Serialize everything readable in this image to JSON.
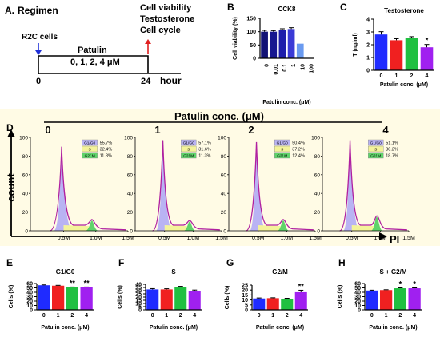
{
  "panel_A": {
    "letter": "A.",
    "title": "Regimen",
    "cells": "R2C cells",
    "treatment": "Patulin",
    "doses": "0, 1, 2, 4 μM",
    "tick_start": "0",
    "tick_end": "24",
    "time_unit": "hour",
    "endpoints": [
      "Cell viability",
      "Testosterone",
      "Cell cycle"
    ]
  },
  "panel_D": {
    "letter": "D",
    "header": "Patulin conc. (μM)",
    "y_axis_title": "count",
    "x_axis_title": "PI",
    "y_ticks": [
      "0",
      "20",
      "40",
      "60",
      "80",
      "100"
    ],
    "x_ticks": [
      "0.5M",
      "1.0M",
      "1.5M"
    ],
    "legend_labels": [
      "G1/G0",
      "S",
      "G2/ M"
    ],
    "colors": {
      "g1": "#b9b3f3",
      "s": "#f4f39a",
      "g2m": "#5fd36a",
      "outline": "#b020a0"
    }
  },
  "chart_data": [
    {
      "panel": "B",
      "type": "bar",
      "title": "CCK8",
      "ylabel": "Cell viability (%)",
      "xlabel": "Patulin conc. (μM)",
      "categories": [
        "0",
        "0.01",
        "0.1",
        "1",
        "10",
        "100"
      ],
      "values": [
        100,
        100,
        105,
        110,
        55,
        0
      ],
      "errors": [
        5,
        4,
        6,
        5,
        0,
        0
      ],
      "ylim": [
        0,
        150
      ],
      "yticks": [
        0,
        50,
        100,
        150
      ],
      "colors": [
        "#131375",
        "#161690",
        "#1d1dab",
        "#3a3ad6",
        "#6a9af0",
        "#6a9af0"
      ]
    },
    {
      "panel": "C",
      "type": "bar",
      "title": "Testosterone",
      "ylabel": "T (ng/ml)",
      "xlabel": "Patulin conc. (μM)",
      "categories": [
        "0",
        "1",
        "2",
        "4"
      ],
      "values": [
        2.8,
        2.35,
        2.55,
        1.8
      ],
      "errors": [
        0.22,
        0.12,
        0.08,
        0.22
      ],
      "stars": [
        "",
        "",
        "",
        "*"
      ],
      "ylim": [
        0,
        4
      ],
      "yticks": [
        0,
        1,
        2,
        3,
        4
      ],
      "colors": [
        "#1f2bff",
        "#f02020",
        "#20c040",
        "#a020f0"
      ]
    },
    {
      "panel": "D0",
      "type": "area",
      "title": "0",
      "phases": [
        {
          "name": "G1/G0",
          "percent": "55.7%"
        },
        {
          "name": "S",
          "percent": "32.4%"
        },
        {
          "name": "G2/ M",
          "percent": "11.8%"
        }
      ],
      "peak": 90,
      "g2_height": 11
    },
    {
      "panel": "D1",
      "type": "area",
      "title": "1",
      "phases": [
        {
          "name": "G1/G0",
          "percent": "57.1%"
        },
        {
          "name": "S",
          "percent": "31.6%"
        },
        {
          "name": "G2/ M",
          "percent": "11.3%"
        }
      ],
      "peak": 97,
      "g2_height": 10
    },
    {
      "panel": "D2",
      "type": "area",
      "title": "2",
      "phases": [
        {
          "name": "G1/G0",
          "percent": "50.4%"
        },
        {
          "name": "S",
          "percent": "37.2%"
        },
        {
          "name": "G2/ M",
          "percent": "12.4%"
        }
      ],
      "peak": 95,
      "g2_height": 11
    },
    {
      "panel": "D4",
      "type": "area",
      "title": "4",
      "phases": [
        {
          "name": "G1/G0",
          "percent": "51.1%"
        },
        {
          "name": "S",
          "percent": "30.2%"
        },
        {
          "name": "G2/ M",
          "percent": "18.7%"
        }
      ],
      "peak": 97,
      "g2_height": 15
    },
    {
      "panel": "E",
      "type": "bar",
      "title": "G1/G0",
      "ylabel": "Cells (%)",
      "xlabel": "Patulin conc. (μM)",
      "categories": [
        "0",
        "1",
        "2",
        "4"
      ],
      "values": [
        56,
        55,
        51,
        51
      ],
      "errors": [
        0.8,
        0.8,
        1.0,
        1.0
      ],
      "stars": [
        "",
        "",
        "**",
        "**"
      ],
      "ylim": [
        0,
        60
      ],
      "yticks": [
        0,
        10,
        20,
        30,
        40,
        50,
        60
      ],
      "colors": [
        "#1f2bff",
        "#f02020",
        "#20c040",
        "#a020f0"
      ]
    },
    {
      "panel": "F",
      "type": "bar",
      "title": "S",
      "ylabel": "Cells (%)",
      "xlabel": "Patulin conc. (μM)",
      "categories": [
        "0",
        "1",
        "2",
        "4"
      ],
      "values": [
        32,
        32,
        36,
        30
      ],
      "errors": [
        1.2,
        1.0,
        0.8,
        1.0
      ],
      "stars": [
        "",
        "",
        "",
        ""
      ],
      "ylim": [
        0,
        40
      ],
      "yticks": [
        0,
        5,
        10,
        15,
        20,
        25,
        30,
        35,
        40
      ],
      "colors": [
        "#1f2bff",
        "#f02020",
        "#20c040",
        "#a020f0"
      ]
    },
    {
      "panel": "G",
      "type": "bar",
      "title": "G2/M",
      "ylabel": "Cells (%)",
      "xlabel": "Patulin conc. (μM)",
      "categories": [
        "0",
        "1",
        "2",
        "4"
      ],
      "values": [
        11.5,
        11.8,
        11.3,
        17.8
      ],
      "errors": [
        0.5,
        0.4,
        0.4,
        2.0
      ],
      "stars": [
        "",
        "",
        "",
        "**"
      ],
      "ylim": [
        0,
        25
      ],
      "yticks": [
        0,
        5,
        10,
        15,
        20,
        25
      ],
      "colors": [
        "#1f2bff",
        "#f02020",
        "#20c040",
        "#a020f0"
      ]
    },
    {
      "panel": "H",
      "type": "bar",
      "title": "S + G2/M",
      "ylabel": "Cells (%)",
      "xlabel": "Patulin conc. (μM)",
      "categories": [
        "0",
        "1",
        "2",
        "4"
      ],
      "values": [
        44,
        45,
        49,
        49
      ],
      "errors": [
        0.8,
        0.8,
        1.0,
        1.0
      ],
      "stars": [
        "",
        "",
        "*",
        "*"
      ],
      "ylim": [
        0,
        60
      ],
      "yticks": [
        0,
        10,
        20,
        30,
        40,
        50,
        60
      ],
      "colors": [
        "#1f2bff",
        "#f02020",
        "#20c040",
        "#a020f0"
      ]
    }
  ]
}
